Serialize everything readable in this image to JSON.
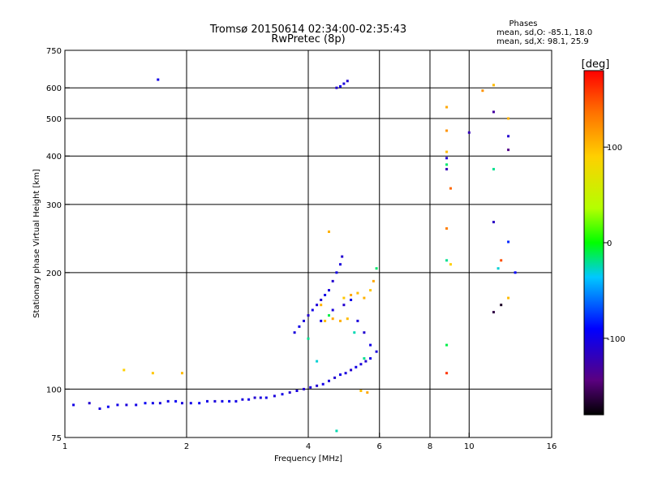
{
  "chart_data": {
    "type": "scatter",
    "title": "Tromsø 20150614 02:34:00-02:35:43",
    "subtitle": "RwPretec (8p)",
    "xlabel": "Frequency [MHz]",
    "ylabel": "Stationary phase Virtual Height [km]",
    "x_scale": "log",
    "y_scale": "log",
    "xlim": [
      1,
      16
    ],
    "ylim": [
      75,
      750
    ],
    "x_ticks": [
      1,
      2,
      4,
      6,
      8,
      10,
      16
    ],
    "y_ticks": [
      75,
      100,
      200,
      300,
      400,
      500,
      600,
      750
    ],
    "grid": true,
    "colorbar": {
      "label": "[deg]",
      "range": [
        -180,
        180
      ],
      "ticks": [
        100,
        0,
        -100
      ]
    },
    "stats": {
      "heading": "Phases",
      "line1": "mean, sd,O: -85.1, 18.0",
      "line2": "mean, sd,X:  98.1, 25.9"
    },
    "series": [
      {
        "points": [
          [
            1.05,
            91,
            -100
          ],
          [
            1.15,
            92,
            -110
          ],
          [
            1.22,
            89,
            -105
          ],
          [
            1.28,
            90,
            -95
          ],
          [
            1.35,
            91,
            -100
          ],
          [
            1.42,
            91,
            -105
          ],
          [
            1.5,
            91,
            -100
          ],
          [
            1.58,
            92,
            -95
          ],
          [
            1.65,
            92,
            -100
          ],
          [
            1.72,
            92,
            -105
          ],
          [
            1.8,
            93,
            -100
          ],
          [
            1.88,
            93,
            -95
          ],
          [
            1.95,
            92,
            -105
          ],
          [
            2.05,
            92,
            -100
          ],
          [
            2.15,
            92,
            -95
          ],
          [
            2.25,
            93,
            -100
          ],
          [
            2.35,
            93,
            -105
          ],
          [
            2.45,
            93,
            -100
          ],
          [
            2.55,
            93,
            -95
          ],
          [
            2.65,
            93,
            -100
          ],
          [
            2.75,
            94,
            -105
          ],
          [
            2.85,
            94,
            -100
          ],
          [
            2.95,
            95,
            -110
          ],
          [
            3.05,
            95,
            -105
          ],
          [
            3.15,
            95,
            -100
          ],
          [
            3.3,
            96,
            -105
          ],
          [
            3.45,
            97,
            -100
          ],
          [
            3.6,
            98,
            -110
          ],
          [
            3.75,
            99,
            -105
          ],
          [
            3.9,
            100,
            -110
          ],
          [
            4.05,
            101,
            -105
          ],
          [
            4.2,
            102,
            -110
          ],
          [
            4.35,
            103,
            -100
          ],
          [
            4.5,
            105,
            -105
          ],
          [
            4.65,
            107,
            -110
          ],
          [
            4.8,
            109,
            -100
          ],
          [
            4.95,
            110,
            -105
          ],
          [
            5.1,
            112,
            -110
          ],
          [
            5.25,
            114,
            -100
          ],
          [
            5.4,
            116,
            -105
          ],
          [
            5.55,
            118,
            -110
          ],
          [
            5.7,
            120,
            -100
          ],
          [
            3.7,
            140,
            -105
          ],
          [
            3.8,
            145,
            -100
          ],
          [
            3.9,
            150,
            -105
          ],
          [
            4.0,
            155,
            -110
          ],
          [
            4.1,
            160,
            -100
          ],
          [
            4.2,
            165,
            -105
          ],
          [
            4.3,
            170,
            -110
          ],
          [
            4.4,
            175,
            -100
          ],
          [
            4.5,
            180,
            -105
          ],
          [
            4.6,
            190,
            -110
          ],
          [
            4.7,
            200,
            -100
          ],
          [
            4.8,
            210,
            -105
          ],
          [
            4.85,
            220,
            -110
          ],
          [
            4.3,
            150,
            -100
          ],
          [
            4.6,
            160,
            -105
          ],
          [
            4.9,
            165,
            -110
          ],
          [
            5.1,
            170,
            -100
          ],
          [
            5.3,
            150,
            -105
          ],
          [
            5.5,
            140,
            -110
          ],
          [
            5.7,
            130,
            -100
          ],
          [
            5.9,
            125,
            -105
          ],
          [
            4.7,
            600,
            -110
          ],
          [
            4.8,
            605,
            -100
          ],
          [
            4.9,
            615,
            -105
          ],
          [
            5.0,
            625,
            -110
          ],
          [
            1.7,
            630,
            -100
          ],
          [
            8.8,
            395,
            -110
          ],
          [
            8.8,
            370,
            -120
          ],
          [
            11.5,
            520,
            -130
          ],
          [
            12.5,
            415,
            -140
          ],
          [
            12.5,
            450,
            -110
          ],
          [
            11.5,
            270,
            -115
          ],
          [
            11.5,
            158,
            -160
          ],
          [
            12.0,
            165,
            -170
          ],
          [
            10.0,
            460,
            -120
          ],
          [
            12.5,
            240,
            -80
          ],
          [
            13.0,
            200,
            -90
          ]
        ]
      },
      {
        "points": [
          [
            4.4,
            150,
            100
          ],
          [
            4.6,
            152,
            110
          ],
          [
            4.8,
            150,
            105
          ],
          [
            5.0,
            152,
            100
          ],
          [
            4.9,
            172,
            95
          ],
          [
            5.1,
            175,
            110
          ],
          [
            5.3,
            177,
            100
          ],
          [
            5.5,
            172,
            105
          ],
          [
            5.7,
            180,
            95
          ],
          [
            5.8,
            190,
            110
          ],
          [
            4.3,
            165,
            105
          ],
          [
            1.4,
            112,
            90
          ],
          [
            1.65,
            110,
            95
          ],
          [
            1.95,
            110,
            100
          ],
          [
            5.6,
            98,
            110
          ],
          [
            5.4,
            99,
            100
          ],
          [
            4.5,
            255,
            105
          ],
          [
            8.8,
            535,
            110
          ],
          [
            8.8,
            465,
            120
          ],
          [
            8.8,
            410,
            100
          ],
          [
            9.0,
            330,
            140
          ],
          [
            8.8,
            260,
            130
          ],
          [
            8.8,
            110,
            160
          ],
          [
            10.8,
            590,
            120
          ],
          [
            11.5,
            610,
            100
          ],
          [
            12.5,
            500,
            105
          ],
          [
            12.0,
            215,
            150
          ],
          [
            9.0,
            210,
            90
          ],
          [
            12.5,
            172,
            100
          ]
        ]
      },
      {
        "points": [
          [
            4.0,
            135,
            -20
          ],
          [
            4.5,
            155,
            -10
          ],
          [
            5.2,
            140,
            -25
          ],
          [
            8.8,
            380,
            -15
          ],
          [
            8.8,
            215,
            -20
          ],
          [
            8.8,
            130,
            -10
          ],
          [
            11.5,
            370,
            -20
          ],
          [
            11.8,
            205,
            -30
          ],
          [
            4.7,
            78,
            -25
          ],
          [
            5.9,
            205,
            -15
          ],
          [
            4.2,
            118,
            -30
          ],
          [
            5.5,
            120,
            -20
          ]
        ]
      }
    ]
  }
}
